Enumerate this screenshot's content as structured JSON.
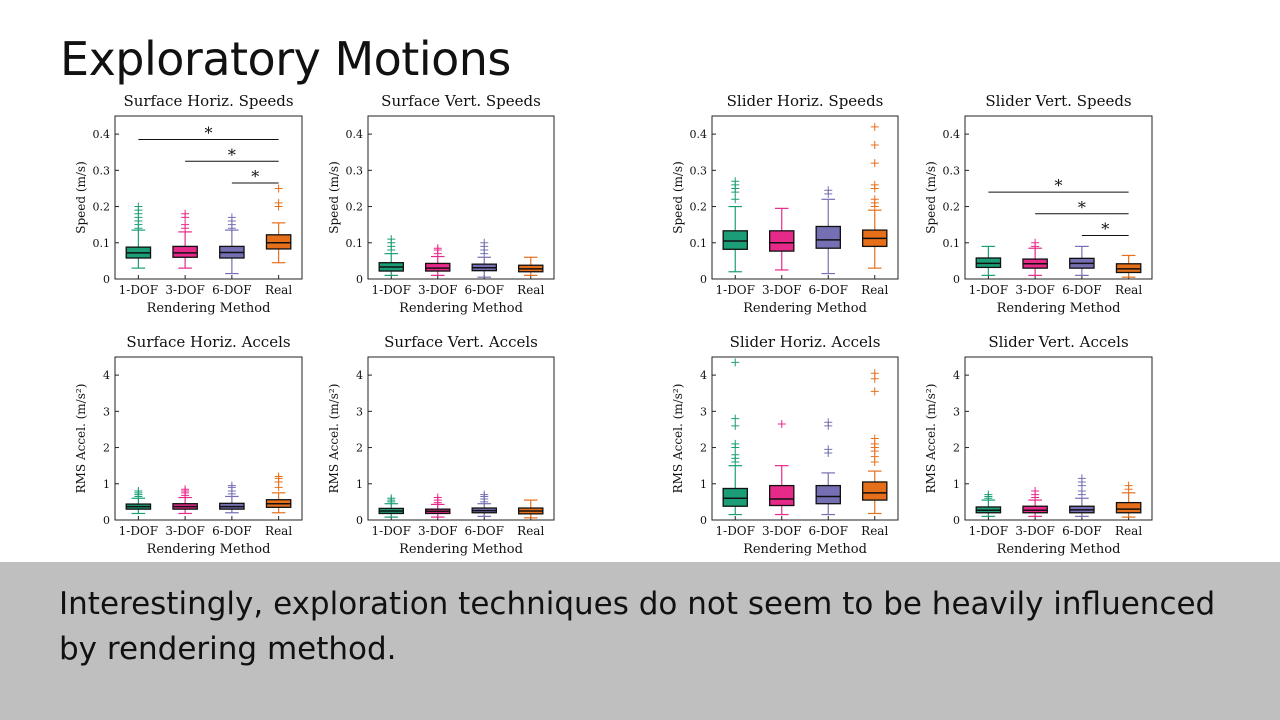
{
  "slide": {
    "title": "Exploratory Motions",
    "caption": "Interestingly, exploration techniques do not seem to be heavily influenced by rendering method."
  },
  "colors": {
    "1-DOF": "#1b9e77",
    "3-DOF": "#e7298a",
    "6-DOF": "#7570b3",
    "Real": "#e6701a"
  },
  "chart_data": [
    {
      "type": "box",
      "title": "Surface Horiz. Speeds",
      "categories": [
        "1-DOF",
        "3-DOF",
        "6-DOF",
        "Real"
      ],
      "xlabel": "Rendering Method",
      "ylabel": "Speed (m/s)",
      "ylim": [
        0,
        0.45
      ],
      "yticks": [
        0,
        0.1,
        0.2,
        0.3,
        0.4
      ],
      "ytick_labels": [
        "0",
        "0.1",
        "0.2",
        "0.3",
        "0.4"
      ],
      "boxes": [
        {
          "min": 0.03,
          "q1": 0.058,
          "median": 0.072,
          "q3": 0.088,
          "max": 0.135,
          "outliers": [
            0.14,
            0.15,
            0.16,
            0.17,
            0.18,
            0.19,
            0.2
          ]
        },
        {
          "min": 0.03,
          "q1": 0.06,
          "median": 0.072,
          "q3": 0.09,
          "max": 0.13,
          "outliers": [
            0.14,
            0.15,
            0.17,
            0.18
          ]
        },
        {
          "min": 0.015,
          "q1": 0.058,
          "median": 0.073,
          "q3": 0.09,
          "max": 0.135,
          "outliers": [
            0.14,
            0.15,
            0.16,
            0.17
          ]
        },
        {
          "min": 0.045,
          "q1": 0.083,
          "median": 0.1,
          "q3": 0.122,
          "max": 0.155,
          "outliers": [
            0.2,
            0.21,
            0.25
          ]
        }
      ],
      "significance": [
        {
          "from": 0,
          "to": 3,
          "y": 0.385,
          "label": "*"
        },
        {
          "from": 1,
          "to": 3,
          "y": 0.325,
          "label": "*"
        },
        {
          "from": 2,
          "to": 3,
          "y": 0.265,
          "label": "*"
        }
      ]
    },
    {
      "type": "box",
      "title": "Surface Vert. Speeds",
      "categories": [
        "1-DOF",
        "3-DOF",
        "6-DOF",
        "Real"
      ],
      "xlabel": "Rendering Method",
      "ylabel": "Speed (m/s)",
      "ylim": [
        0,
        0.45
      ],
      "yticks": [
        0,
        0.1,
        0.2,
        0.3,
        0.4
      ],
      "ytick_labels": [
        "0",
        "0.1",
        "0.2",
        "0.3",
        "0.4"
      ],
      "boxes": [
        {
          "min": 0.01,
          "q1": 0.022,
          "median": 0.033,
          "q3": 0.045,
          "max": 0.07,
          "outliers": [
            0.08,
            0.09,
            0.1,
            0.11
          ]
        },
        {
          "min": 0.01,
          "q1": 0.022,
          "median": 0.03,
          "q3": 0.043,
          "max": 0.062,
          "outliers": [
            0.07,
            0.08,
            0.085
          ]
        },
        {
          "min": 0.005,
          "q1": 0.023,
          "median": 0.031,
          "q3": 0.041,
          "max": 0.06,
          "outliers": [
            0.07,
            0.08,
            0.09,
            0.1
          ]
        },
        {
          "min": 0.01,
          "q1": 0.02,
          "median": 0.028,
          "q3": 0.038,
          "max": 0.06,
          "outliers": []
        }
      ],
      "significance": []
    },
    {
      "type": "box",
      "title": "Slider Horiz. Speeds",
      "categories": [
        "1-DOF",
        "3-DOF",
        "6-DOF",
        "Real"
      ],
      "xlabel": "Rendering Method",
      "ylabel": "Speed (m/s)",
      "ylim": [
        0,
        0.45
      ],
      "yticks": [
        0,
        0.1,
        0.2,
        0.3,
        0.4
      ],
      "ytick_labels": [
        "0",
        "0.1",
        "0.2",
        "0.3",
        "0.4"
      ],
      "boxes": [
        {
          "min": 0.02,
          "q1": 0.082,
          "median": 0.105,
          "q3": 0.133,
          "max": 0.2,
          "outliers": [
            0.22,
            0.24,
            0.25,
            0.26,
            0.27
          ]
        },
        {
          "min": 0.025,
          "q1": 0.077,
          "median": 0.1,
          "q3": 0.133,
          "max": 0.195,
          "outliers": []
        },
        {
          "min": 0.015,
          "q1": 0.085,
          "median": 0.108,
          "q3": 0.145,
          "max": 0.22,
          "outliers": [
            0.235,
            0.245
          ]
        },
        {
          "min": 0.03,
          "q1": 0.09,
          "median": 0.112,
          "q3": 0.135,
          "max": 0.19,
          "outliers": [
            0.2,
            0.21,
            0.22,
            0.25,
            0.26,
            0.32,
            0.37,
            0.42
          ]
        }
      ],
      "significance": []
    },
    {
      "type": "box",
      "title": "Slider Vert. Speeds",
      "categories": [
        "1-DOF",
        "3-DOF",
        "6-DOF",
        "Real"
      ],
      "xlabel": "Rendering Method",
      "ylabel": "Speed (m/s)",
      "ylim": [
        0,
        0.45
      ],
      "yticks": [
        0,
        0.1,
        0.2,
        0.3,
        0.4
      ],
      "ytick_labels": [
        "0",
        "0.1",
        "0.2",
        "0.3",
        "0.4"
      ],
      "boxes": [
        {
          "min": 0.01,
          "q1": 0.032,
          "median": 0.043,
          "q3": 0.058,
          "max": 0.09,
          "outliers": []
        },
        {
          "min": 0.01,
          "q1": 0.03,
          "median": 0.042,
          "q3": 0.055,
          "max": 0.085,
          "outliers": [
            0.09,
            0.1
          ]
        },
        {
          "min": 0.01,
          "q1": 0.03,
          "median": 0.043,
          "q3": 0.057,
          "max": 0.09,
          "outliers": []
        },
        {
          "min": 0.005,
          "q1": 0.018,
          "median": 0.028,
          "q3": 0.042,
          "max": 0.065,
          "outliers": []
        }
      ],
      "significance": [
        {
          "from": 0,
          "to": 3,
          "y": 0.24,
          "label": "*"
        },
        {
          "from": 1,
          "to": 3,
          "y": 0.18,
          "label": "*"
        },
        {
          "from": 2,
          "to": 3,
          "y": 0.12,
          "label": "*"
        }
      ]
    },
    {
      "type": "box",
      "title": "Surface Horiz. Accels",
      "categories": [
        "1-DOF",
        "3-DOF",
        "6-DOF",
        "Real"
      ],
      "xlabel": "Rendering Method",
      "ylabel": "RMS Accel. (m/s²)",
      "ylim": [
        0,
        4.5
      ],
      "yticks": [
        0,
        1,
        2,
        3,
        4
      ],
      "ytick_labels": [
        "0",
        "1",
        "2",
        "3",
        "4"
      ],
      "boxes": [
        {
          "min": 0.18,
          "q1": 0.3,
          "median": 0.37,
          "q3": 0.44,
          "max": 0.6,
          "outliers": [
            0.65,
            0.7,
            0.75,
            0.8
          ]
        },
        {
          "min": 0.18,
          "q1": 0.3,
          "median": 0.37,
          "q3": 0.45,
          "max": 0.62,
          "outliers": [
            0.68,
            0.75,
            0.8,
            0.85
          ]
        },
        {
          "min": 0.2,
          "q1": 0.3,
          "median": 0.37,
          "q3": 0.46,
          "max": 0.65,
          "outliers": [
            0.72,
            0.8,
            0.9,
            0.95
          ]
        },
        {
          "min": 0.2,
          "q1": 0.35,
          "median": 0.45,
          "q3": 0.56,
          "max": 0.75,
          "outliers": [
            0.9,
            1.05,
            1.15,
            1.2
          ]
        }
      ],
      "significance": []
    },
    {
      "type": "box",
      "title": "Surface Vert. Accels",
      "categories": [
        "1-DOF",
        "3-DOF",
        "6-DOF",
        "Real"
      ],
      "xlabel": "Rendering Method",
      "ylabel": "RMS Accel. (m/s²)",
      "ylim": [
        0,
        4.5
      ],
      "yticks": [
        0,
        1,
        2,
        3,
        4
      ],
      "ytick_labels": [
        "0",
        "1",
        "2",
        "3",
        "4"
      ],
      "boxes": [
        {
          "min": 0.08,
          "q1": 0.18,
          "median": 0.25,
          "q3": 0.32,
          "max": 0.45,
          "outliers": [
            0.5,
            0.55,
            0.6
          ]
        },
        {
          "min": 0.08,
          "q1": 0.18,
          "median": 0.24,
          "q3": 0.3,
          "max": 0.43,
          "outliers": [
            0.48,
            0.55,
            0.62
          ]
        },
        {
          "min": 0.1,
          "q1": 0.2,
          "median": 0.26,
          "q3": 0.33,
          "max": 0.45,
          "outliers": [
            0.5,
            0.58,
            0.65,
            0.7
          ]
        },
        {
          "min": 0.06,
          "q1": 0.17,
          "median": 0.25,
          "q3": 0.33,
          "max": 0.55,
          "outliers": []
        }
      ],
      "significance": []
    },
    {
      "type": "box",
      "title": "Slider Horiz. Accels",
      "categories": [
        "1-DOF",
        "3-DOF",
        "6-DOF",
        "Real"
      ],
      "xlabel": "Rendering Method",
      "ylabel": "RMS Accel. (m/s²)",
      "ylim": [
        0,
        4.5
      ],
      "yticks": [
        0,
        1,
        2,
        3,
        4
      ],
      "ytick_labels": [
        "0",
        "1",
        "2",
        "3",
        "4"
      ],
      "boxes": [
        {
          "min": 0.15,
          "q1": 0.38,
          "median": 0.6,
          "q3": 0.87,
          "max": 1.5,
          "outliers": [
            1.6,
            1.7,
            1.8,
            2.0,
            2.1,
            2.6,
            2.8,
            4.35
          ]
        },
        {
          "min": 0.15,
          "q1": 0.4,
          "median": 0.58,
          "q3": 0.95,
          "max": 1.5,
          "outliers": [
            2.65
          ]
        },
        {
          "min": 0.15,
          "q1": 0.45,
          "median": 0.65,
          "q3": 0.95,
          "max": 1.3,
          "outliers": [
            1.85,
            1.95,
            2.6,
            2.7
          ]
        },
        {
          "min": 0.18,
          "q1": 0.55,
          "median": 0.75,
          "q3": 1.05,
          "max": 1.35,
          "outliers": [
            1.6,
            1.75,
            1.9,
            2.0,
            2.1,
            2.25,
            3.55,
            3.9,
            4.05
          ]
        }
      ],
      "significance": []
    },
    {
      "type": "box",
      "title": "Slider Vert. Accels",
      "categories": [
        "1-DOF",
        "3-DOF",
        "6-DOF",
        "Real"
      ],
      "xlabel": "Rendering Method",
      "ylabel": "RMS Accel. (m/s²)",
      "ylim": [
        0,
        4.5
      ],
      "yticks": [
        0,
        1,
        2,
        3,
        4
      ],
      "ytick_labels": [
        "0",
        "1",
        "2",
        "3",
        "4"
      ],
      "boxes": [
        {
          "min": 0.1,
          "q1": 0.2,
          "median": 0.27,
          "q3": 0.36,
          "max": 0.55,
          "outliers": [
            0.6,
            0.65,
            0.7
          ]
        },
        {
          "min": 0.1,
          "q1": 0.2,
          "median": 0.27,
          "q3": 0.38,
          "max": 0.55,
          "outliers": [
            0.62,
            0.7,
            0.8
          ]
        },
        {
          "min": 0.1,
          "q1": 0.2,
          "median": 0.28,
          "q3": 0.38,
          "max": 0.6,
          "outliers": [
            0.7,
            0.8,
            0.95,
            1.05,
            1.15
          ]
        },
        {
          "min": 0.08,
          "q1": 0.2,
          "median": 0.3,
          "q3": 0.48,
          "max": 0.75,
          "outliers": [
            0.85,
            0.95
          ]
        }
      ],
      "significance": []
    }
  ]
}
